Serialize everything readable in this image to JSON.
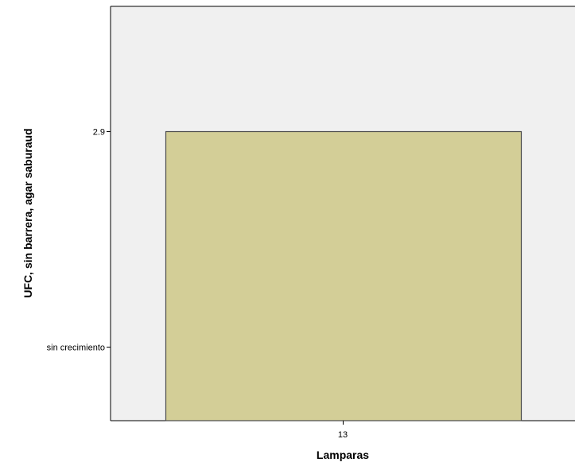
{
  "chart_data": {
    "type": "bar",
    "categories": [
      "13"
    ],
    "values": [
      2.9
    ],
    "xlabel": "Lamparas",
    "ylabel": "UFC, sin barrera, agar saburaud",
    "y_ticks": [
      {
        "label": "2.9",
        "value": 2.9
      },
      {
        "label": "sin crecimiento",
        "value": 1
      }
    ],
    "ylim": [
      0.35,
      4.0
    ],
    "grid": false,
    "colors": {
      "plot_background": "#f0f0f0",
      "bar_fill": "#d3ce97",
      "bar_stroke": "#4b4b4b",
      "axis": "#000000"
    }
  }
}
